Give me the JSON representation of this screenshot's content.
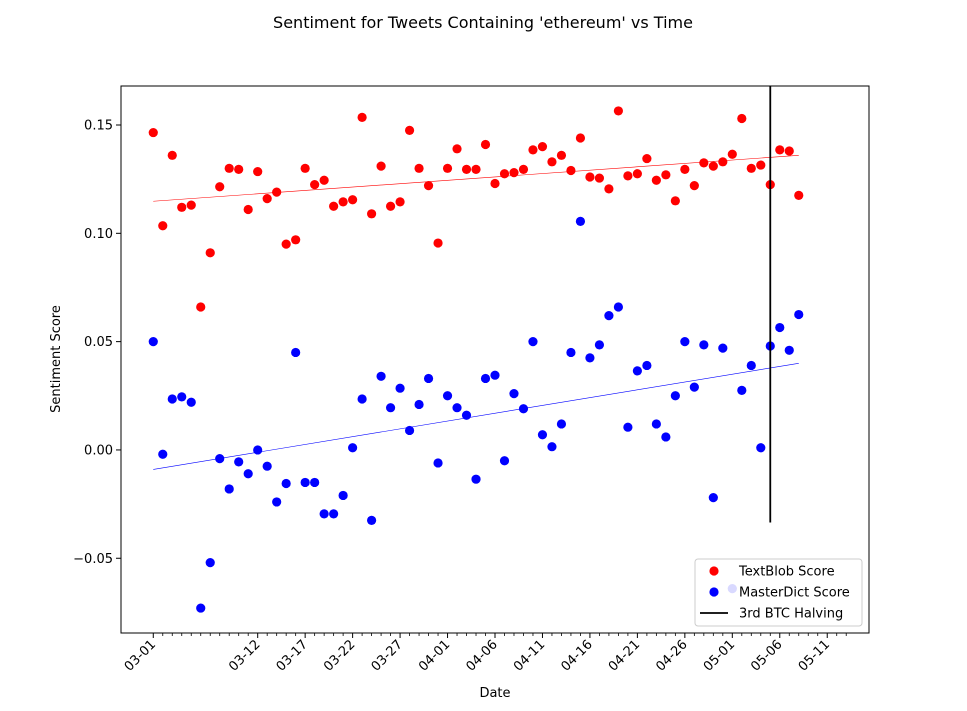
{
  "chart_data": {
    "type": "scatter",
    "title": "Sentiment for Tweets Containing 'ethereum' vs Time",
    "xlabel": "Date",
    "ylabel": "Sentiment Score",
    "ylim": [
      -0.0845,
      0.168
    ],
    "x_start": "03-01",
    "x_range_days": [
      -3.4,
      75.4
    ],
    "xticks": [
      "03-01",
      "03-12",
      "03-17",
      "03-22",
      "03-27",
      "04-01",
      "04-06",
      "04-11",
      "04-16",
      "04-21",
      "04-26",
      "05-01",
      "05-06",
      "05-11"
    ],
    "xtick_days": [
      0,
      11,
      16,
      21,
      26,
      31,
      36,
      41,
      46,
      51,
      56,
      61,
      66,
      71
    ],
    "minor_tick_days": [
      1,
      2,
      3,
      4,
      5,
      6,
      7,
      8,
      9,
      10,
      12,
      13,
      14,
      15,
      17,
      18,
      19,
      20,
      22,
      23,
      24,
      25,
      27,
      28,
      29,
      30,
      32,
      33,
      34,
      35,
      37,
      38,
      39,
      40,
      42,
      43,
      44,
      45,
      47,
      48,
      49,
      50,
      52,
      53,
      54,
      55,
      57,
      58,
      59,
      60,
      62,
      63,
      64,
      65,
      67,
      68,
      69,
      70,
      72,
      73
    ],
    "yticks": [
      -0.05,
      0.0,
      0.05,
      0.1,
      0.15
    ],
    "ytick_labels": [
      "−0.05",
      "0.00",
      "0.05",
      "0.10",
      "0.15"
    ],
    "grid": false,
    "legend_position": "lower-right",
    "series": [
      {
        "name": "TextBlob Score",
        "color": "#ff0000",
        "marker": "circle",
        "values": [
          0.1465,
          0.1035,
          0.136,
          0.112,
          0.113,
          0.066,
          0.091,
          0.1215,
          0.13,
          0.1295,
          0.111,
          0.1285,
          0.116,
          0.119,
          0.095,
          0.097,
          0.13,
          0.1225,
          0.1245,
          0.1125,
          0.1145,
          0.1155,
          0.1535,
          0.109,
          0.131,
          0.1125,
          0.1145,
          0.1475,
          0.13,
          0.122,
          0.0955,
          0.13,
          0.139,
          0.1295,
          0.1295,
          0.141,
          0.123,
          0.1275,
          0.128,
          0.1295,
          0.1385,
          0.14,
          0.133,
          0.136,
          0.129,
          0.144,
          0.126,
          0.1255,
          0.1205,
          0.1565,
          0.1265,
          0.1275,
          0.1345,
          0.1245,
          0.127,
          0.115,
          0.1295,
          0.122,
          0.1325,
          0.131,
          0.133,
          0.1365,
          0.153,
          0.13,
          0.1315,
          0.1225,
          0.1385,
          0.138,
          0.1175
        ]
      },
      {
        "name": "MasterDict Score",
        "color": "#0000ff",
        "marker": "circle",
        "values": [
          0.05,
          -0.002,
          0.0235,
          0.0245,
          0.022,
          -0.073,
          -0.052,
          -0.004,
          -0.018,
          -0.0055,
          -0.011,
          0.0,
          -0.0075,
          -0.024,
          -0.0155,
          0.045,
          -0.015,
          -0.015,
          -0.0295,
          -0.0295,
          -0.021,
          0.001,
          0.0235,
          -0.0325,
          0.034,
          0.0195,
          0.0285,
          0.009,
          0.021,
          0.033,
          -0.006,
          0.025,
          0.0195,
          0.016,
          -0.0135,
          0.033,
          0.0345,
          -0.005,
          0.026,
          0.019,
          0.05,
          0.007,
          0.0015,
          0.012,
          0.045,
          0.1055,
          0.0425,
          0.0485,
          0.062,
          0.066,
          0.0105,
          0.0365,
          0.039,
          0.012,
          0.006,
          0.025,
          0.05,
          0.029,
          0.0485,
          -0.022,
          0.047,
          -0.064,
          0.0275,
          0.039,
          0.001,
          0.048,
          0.0565,
          0.046,
          0.0625
        ]
      }
    ],
    "trendlines": [
      {
        "series": "TextBlob Score",
        "color": "#ff0000",
        "from": [
          0,
          0.1148
        ],
        "to": [
          68,
          0.136
        ]
      },
      {
        "series": "MasterDict Score",
        "color": "#0000ff",
        "from": [
          0,
          -0.009
        ],
        "to": [
          68,
          0.04
        ]
      }
    ],
    "vline": {
      "label": "3rd BTC Halving",
      "day": 65,
      "ymin": -0.0335,
      "ymax": 0.168,
      "color": "#000000"
    },
    "legend": [
      {
        "label": "TextBlob Score",
        "kind": "marker",
        "color": "#ff0000"
      },
      {
        "label": "MasterDict Score",
        "kind": "marker",
        "color": "#0000ff"
      },
      {
        "label": "3rd BTC Halving",
        "kind": "line",
        "color": "#000000"
      }
    ]
  }
}
